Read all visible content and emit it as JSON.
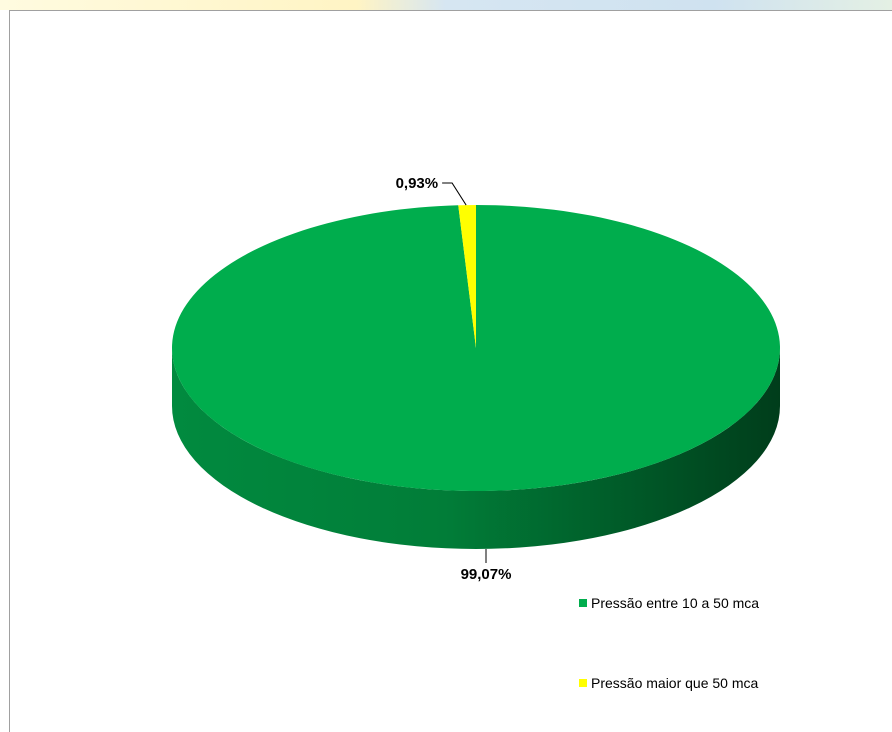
{
  "chart_data": {
    "type": "pie",
    "title": "",
    "slices": [
      {
        "label": "Pressão entre 10 a 50 mca",
        "value": 99.07,
        "value_label": "99,07%",
        "color": "#00ad4d"
      },
      {
        "label": "Pressão maior que 50 mca",
        "value": 0.93,
        "value_label": "0,93%",
        "color": "#ffff00"
      }
    ],
    "legend_placement": "bottom-right",
    "style": "3d"
  }
}
